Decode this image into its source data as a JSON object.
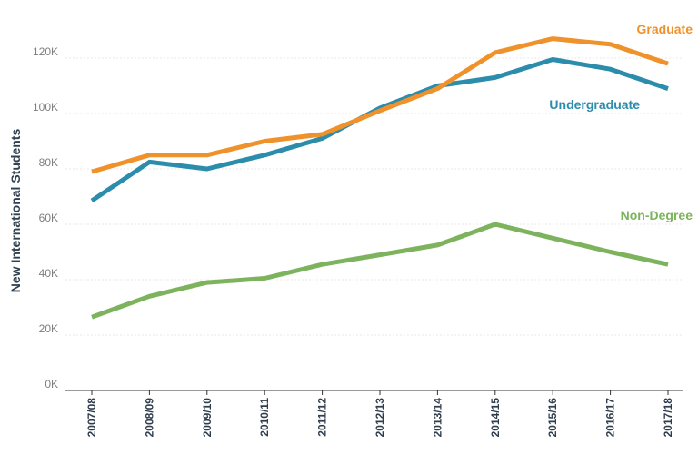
{
  "chart_data": {
    "type": "line",
    "title": "",
    "xlabel": "",
    "ylabel": "New International Students",
    "categories": [
      "2007/08",
      "2008/09",
      "2009/10",
      "2010/11",
      "2011/12",
      "2012/13",
      "2013/14",
      "2014/15",
      "2015/16",
      "2016/17",
      "2017/18"
    ],
    "y_ticks": [
      "0K",
      "20K",
      "40K",
      "60K",
      "80K",
      "100K",
      "120K"
    ],
    "ylim": [
      0,
      130000
    ],
    "grid": true,
    "legend": "inline labels at right",
    "series": [
      {
        "name": "Graduate",
        "color": "#f0922b",
        "values": [
          79000,
          85000,
          85000,
          90000,
          92500,
          101000,
          109000,
          122000,
          127000,
          125000,
          118000
        ]
      },
      {
        "name": "Undergraduate",
        "color": "#2b8cab",
        "values": [
          68500,
          82500,
          80000,
          85000,
          91000,
          102000,
          110000,
          113000,
          119500,
          116000,
          109000
        ]
      },
      {
        "name": "Non-Degree",
        "color": "#7db35d",
        "values": [
          26500,
          34000,
          39000,
          40500,
          45500,
          49000,
          52500,
          60000,
          55000,
          50000,
          45500
        ]
      }
    ]
  }
}
